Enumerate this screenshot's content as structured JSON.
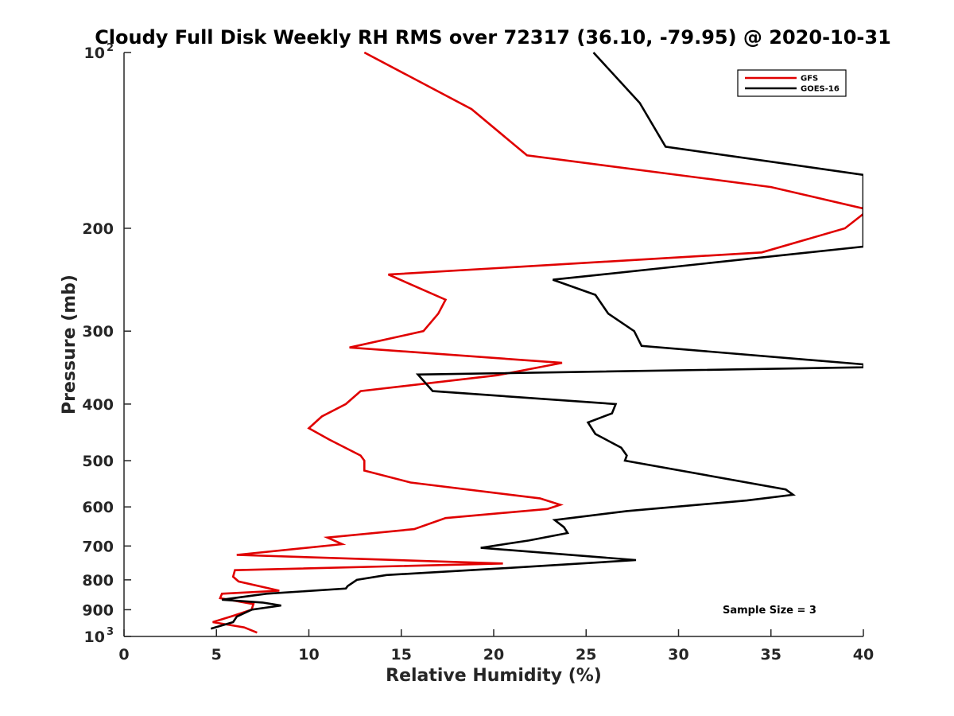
{
  "chart_data": {
    "type": "line",
    "title": "Cloudy Full Disk Weekly RH RMS over 72317 (36.10, -79.95) @ 2020-10-31",
    "xlabel": "Relative Humidity (%)",
    "ylabel": "Pressure (mb)",
    "xlim": [
      0,
      40
    ],
    "ylim": [
      100,
      1000
    ],
    "y_scale": "log",
    "y_reversed": true,
    "grid": false,
    "legend_position": "top-right",
    "x_ticks": [
      "0",
      "5",
      "10",
      "15",
      "20",
      "25",
      "30",
      "35",
      "40"
    ],
    "y_ticks": [
      {
        "value": 100,
        "base": "10",
        "exp": "2"
      },
      {
        "value": 200,
        "label": "200"
      },
      {
        "value": 300,
        "label": "300"
      },
      {
        "value": 400,
        "label": "400"
      },
      {
        "value": 500,
        "label": "500"
      },
      {
        "value": 600,
        "label": "600"
      },
      {
        "value": 700,
        "label": "700"
      },
      {
        "value": 800,
        "label": "800"
      },
      {
        "value": 900,
        "label": "900"
      },
      {
        "value": 1000,
        "base": "10",
        "exp": "3"
      }
    ],
    "annotation": "Sample Size = 3",
    "series": [
      {
        "name": "GFS",
        "color": "#e00000",
        "points": [
          [
            13.0,
            100
          ],
          [
            18.8,
            125
          ],
          [
            21.8,
            150
          ],
          [
            35.0,
            170
          ],
          [
            40.0,
            185
          ],
          [
            40.0,
            189
          ],
          [
            39.0,
            200
          ],
          [
            34.5,
            220
          ],
          [
            14.3,
            240
          ],
          [
            17.4,
            265
          ],
          [
            17.0,
            280
          ],
          [
            16.2,
            300
          ],
          [
            12.2,
            320
          ],
          [
            23.7,
            340
          ],
          [
            20.2,
            357
          ],
          [
            12.8,
            380
          ],
          [
            12.0,
            400
          ],
          [
            10.7,
            420
          ],
          [
            10.0,
            440
          ],
          [
            11.1,
            460
          ],
          [
            12.8,
            490
          ],
          [
            13.0,
            500
          ],
          [
            13.0,
            520
          ],
          [
            15.5,
            545
          ],
          [
            22.5,
            580
          ],
          [
            23.6,
            595
          ],
          [
            22.9,
            605
          ],
          [
            17.4,
            627
          ],
          [
            15.7,
            655
          ],
          [
            11.0,
            677
          ],
          [
            11.8,
            695
          ],
          [
            6.1,
            725
          ],
          [
            20.5,
            750
          ],
          [
            6.0,
            770
          ],
          [
            5.9,
            790
          ],
          [
            6.2,
            805
          ],
          [
            8.4,
            835
          ],
          [
            5.3,
            845
          ],
          [
            5.2,
            860
          ],
          [
            7.0,
            880
          ],
          [
            6.9,
            900
          ],
          [
            6.0,
            920
          ],
          [
            4.8,
            945
          ],
          [
            6.5,
            965
          ],
          [
            7.2,
            985
          ]
        ]
      },
      {
        "name": "GOES-16",
        "color": "#000000",
        "points": [
          [
            25.4,
            100
          ],
          [
            27.9,
            122
          ],
          [
            29.3,
            145
          ],
          [
            40.0,
            162
          ],
          [
            40.0,
            172
          ],
          [
            40.0,
            207
          ],
          [
            40.0,
            212
          ],
          [
            40.0,
            215
          ],
          [
            23.2,
            245
          ],
          [
            25.5,
            260
          ],
          [
            26.2,
            280
          ],
          [
            27.6,
            300
          ],
          [
            28.0,
            318
          ],
          [
            40.0,
            342
          ],
          [
            40.0,
            346
          ],
          [
            15.9,
            356
          ],
          [
            16.7,
            380
          ],
          [
            26.6,
            400
          ],
          [
            26.4,
            415
          ],
          [
            25.1,
            430
          ],
          [
            25.5,
            450
          ],
          [
            26.9,
            475
          ],
          [
            27.2,
            490
          ],
          [
            27.1,
            500
          ],
          [
            35.8,
            560
          ],
          [
            36.2,
            572
          ],
          [
            33.7,
            585
          ],
          [
            27.2,
            610
          ],
          [
            23.3,
            632
          ],
          [
            23.8,
            650
          ],
          [
            24.0,
            665
          ],
          [
            21.9,
            685
          ],
          [
            19.3,
            705
          ],
          [
            27.7,
            740
          ],
          [
            20.3,
            765
          ],
          [
            14.2,
            785
          ],
          [
            12.6,
            800
          ],
          [
            12.1,
            820
          ],
          [
            12.0,
            828
          ],
          [
            7.7,
            845
          ],
          [
            5.3,
            865
          ],
          [
            7.5,
            875
          ],
          [
            8.5,
            885
          ],
          [
            6.9,
            900
          ],
          [
            6.1,
            925
          ],
          [
            5.9,
            945
          ],
          [
            4.7,
            970
          ]
        ]
      }
    ]
  }
}
